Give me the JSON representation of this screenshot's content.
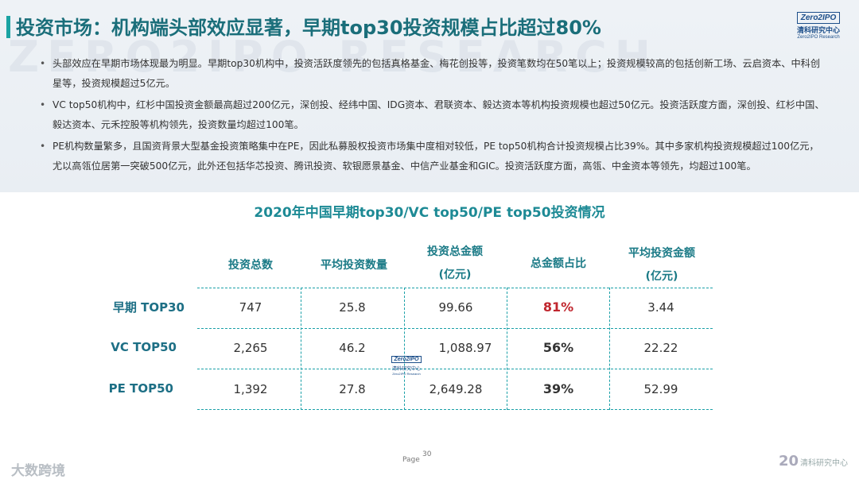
{
  "header": {
    "title": "投资市场：机构端头部效应显著，早期top30投资规模占比超过80%",
    "watermark": "ZERO2IPO RESEARCH",
    "logo": {
      "box": "Zero2IPO",
      "cn": "清科研究中心",
      "en": "Zero2IPO Research"
    }
  },
  "bullets": [
    "头部效应在早期市场体现最为明显。早期top30机构中，投资活跃度领先的包括真格基金、梅花创投等，投资笔数均在50笔以上；投资规模较高的包括创新工场、云启资本、中科创星等，投资规模超过5亿元。",
    "VC top50机构中，红杉中国投资金额最高超过200亿元，深创投、经纬中国、IDG资本、君联资本、毅达资本等机构投资规模也超过50亿元。投资活跃度方面，深创投、红杉中国、毅达资本、元禾控股等机构领先，投资数量均超过100笔。",
    "PE机构数量繁多，且国资背景大型基金投资策略集中在PE，因此私募股权投资市场集中度相对较低，PE top50机构合计投资规模占比39%。其中多家机构投资规模超过100亿元，尤以高瓴位居第一突破500亿元，此外还包括华芯投资、腾讯投资、软银愿景基金、中信产业基金和GIC。投资活跃度方面，高瓴、中金资本等领先，均超过100笔。"
  ],
  "table": {
    "title": "2020年中国早期top30/VC top50/PE top50投资情况",
    "headers": [
      {
        "l1": "投资总数",
        "l2": ""
      },
      {
        "l1": "平均投资数量",
        "l2": ""
      },
      {
        "l1": "投资总金额",
        "l2": "(亿元)"
      },
      {
        "l1": "总金额占比",
        "l2": ""
      },
      {
        "l1": "平均投资金额",
        "l2": "(亿元)"
      }
    ],
    "rows": [
      {
        "label": "早期 TOP30",
        "cells": [
          "747",
          "25.8",
          "99.66",
          "81%",
          "3.44"
        ]
      },
      {
        "label": "VC TOP50",
        "cells": [
          "2,265",
          "46.2",
          "1,088.97",
          "56%",
          "22.22"
        ]
      },
      {
        "label": "PE TOP50",
        "cells": [
          "1,392",
          "27.8",
          "2,649.28",
          "39%",
          "52.99"
        ]
      }
    ],
    "highlight_color": "#c0262e"
  },
  "footer": {
    "page_label": "Page",
    "page_number": "30",
    "right_year": "20",
    "right_text": "清科研究中心",
    "left_text": "大数跨境"
  }
}
